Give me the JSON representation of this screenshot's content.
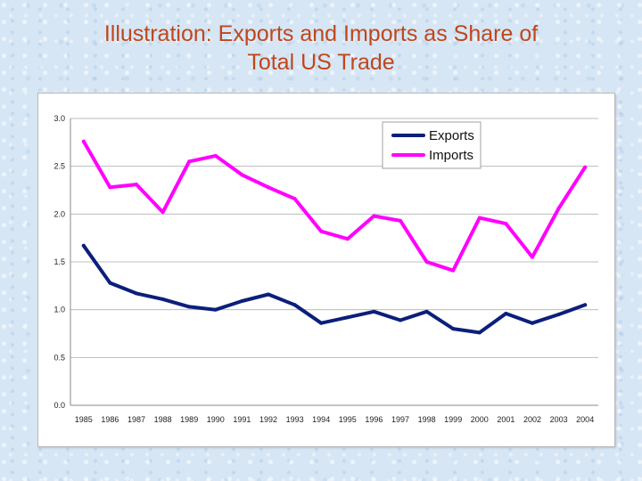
{
  "slide": {
    "title_line1": "Illustration: Exports and Imports as Share of",
    "title_line2": "Total US Trade"
  },
  "chart_data": {
    "type": "line",
    "title": "",
    "xlabel": "",
    "ylabel": "",
    "x": [
      1985,
      1986,
      1987,
      1988,
      1989,
      1990,
      1991,
      1992,
      1993,
      1994,
      1995,
      1996,
      1997,
      1998,
      1999,
      2000,
      2001,
      2002,
      2003,
      2004
    ],
    "x_tick_labels": [
      "1985",
      "1986",
      "1987",
      "1988",
      "1989",
      "1990",
      "1991",
      "1992",
      "1993",
      "1994",
      "1995",
      "1996",
      "1997",
      "1998",
      "1999",
      "2000",
      "2001",
      "2002",
      "2003",
      "2004"
    ],
    "ylim": [
      0,
      3.0
    ],
    "y_ticks": [
      0.0,
      0.5,
      1.0,
      1.5,
      2.0,
      2.5,
      3.0
    ],
    "y_tick_labels": [
      "0.0",
      "0.5",
      "1.0",
      "1.5",
      "2.0",
      "2.5",
      "3.0"
    ],
    "grid": true,
    "legend_position": "top-right",
    "series": [
      {
        "name": "Exports",
        "color": "#0b1f7a",
        "values": [
          1.67,
          1.28,
          1.17,
          1.11,
          1.03,
          1.0,
          1.09,
          1.16,
          1.05,
          0.86,
          0.92,
          0.98,
          0.89,
          0.98,
          0.8,
          0.76,
          0.96,
          0.86,
          0.95,
          1.05
        ]
      },
      {
        "name": "Imports",
        "color": "#ff00ff",
        "values": [
          2.76,
          2.28,
          2.31,
          2.02,
          2.55,
          2.61,
          2.41,
          2.28,
          2.16,
          1.82,
          1.74,
          1.98,
          1.93,
          1.5,
          1.41,
          1.96,
          1.9,
          1.55,
          2.06,
          2.49
        ]
      }
    ]
  }
}
